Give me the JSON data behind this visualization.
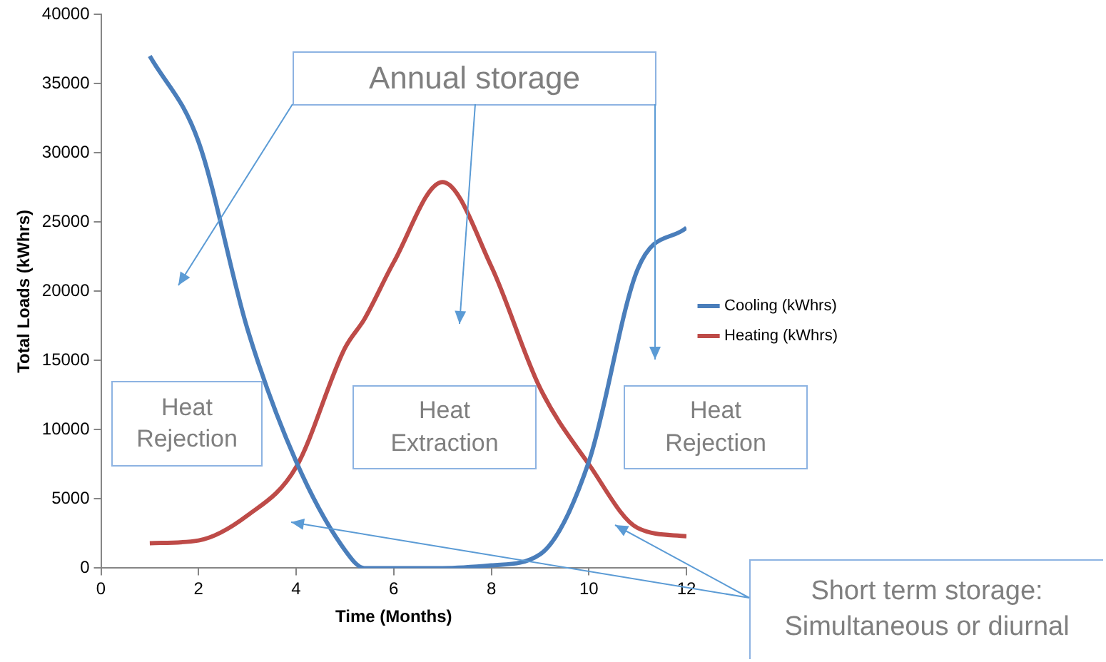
{
  "chart_data": {
    "type": "line",
    "xlabel": "Time (Months)",
    "ylabel": "Total Loads (kWhrs)",
    "x": [
      1,
      2,
      3,
      4,
      5,
      5.4,
      6,
      7,
      8,
      9,
      10,
      11,
      12
    ],
    "series": [
      {
        "name": "Cooling (kWhrs)",
        "color": "#4a7ebb",
        "values": [
          37000,
          30800,
          17300,
          7700,
          1300,
          0,
          0,
          0,
          200,
          1000,
          7700,
          21600,
          24600
        ]
      },
      {
        "name": "Heating (kWhrs)",
        "color": "#be4b48",
        "values": [
          1800,
          2000,
          3800,
          7300,
          15900,
          18000,
          22100,
          27900,
          21800,
          13000,
          7500,
          2900,
          2300
        ]
      }
    ],
    "xlim": [
      0,
      12
    ],
    "xticks": [
      0,
      2,
      4,
      6,
      8,
      10,
      12
    ],
    "ylim": [
      0,
      40000
    ],
    "yticks": [
      0,
      5000,
      10000,
      15000,
      20000,
      25000,
      30000,
      35000,
      40000
    ],
    "grid": false,
    "legend": "right",
    "marker": "none",
    "line_style": "solid",
    "annotations": [
      "Annual storage",
      "Heat Rejection",
      "Heat Extraction",
      "Heat Rejection",
      "Short term storage: Simultaneous or diurnal"
    ]
  }
}
